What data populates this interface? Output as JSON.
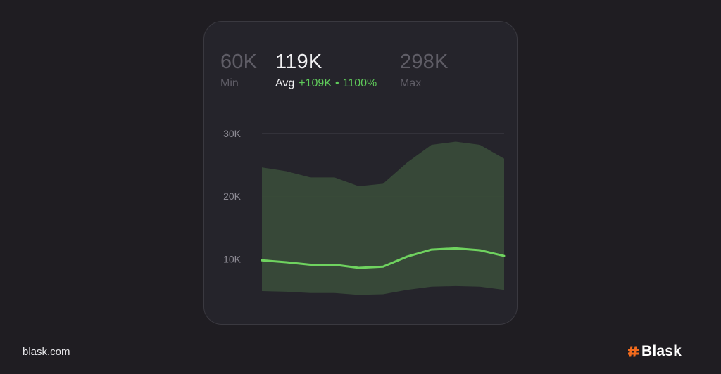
{
  "stats": {
    "min": {
      "value": "60K",
      "label": "Min"
    },
    "avg": {
      "value": "119K",
      "label": "Avg",
      "delta": "+109K",
      "separator": "•",
      "percent": "1100%"
    },
    "max": {
      "value": "298K",
      "label": "Max"
    }
  },
  "footer": {
    "site": "blask.com",
    "brand": "Blask"
  },
  "colors": {
    "background": "#1f1d22",
    "card": "#25242b",
    "band_fill": "#384b39",
    "avg_line": "#6fd35f",
    "brand_accent": "#f26b1d"
  },
  "chart_data": {
    "type": "area",
    "x": [
      1,
      2,
      3,
      4,
      5,
      6,
      7,
      8,
      9,
      10,
      11
    ],
    "series": [
      {
        "values": [
          24600,
          24000,
          23000,
          23000,
          21600,
          22000,
          25400,
          28200,
          28700,
          28200,
          26000
        ]
      },
      {
        "values": [
          9800,
          9500,
          9100,
          9100,
          8600,
          8800,
          10400,
          11500,
          11700,
          11400,
          10500
        ]
      },
      {
        "values": [
          4900,
          4800,
          4600,
          4600,
          4300,
          4400,
          5100,
          5600,
          5700,
          5600,
          5100
        ]
      }
    ],
    "y_ticks": [
      "10K",
      "20K",
      "30K"
    ],
    "ylim": [
      3000,
      31000
    ],
    "grid": true
  }
}
